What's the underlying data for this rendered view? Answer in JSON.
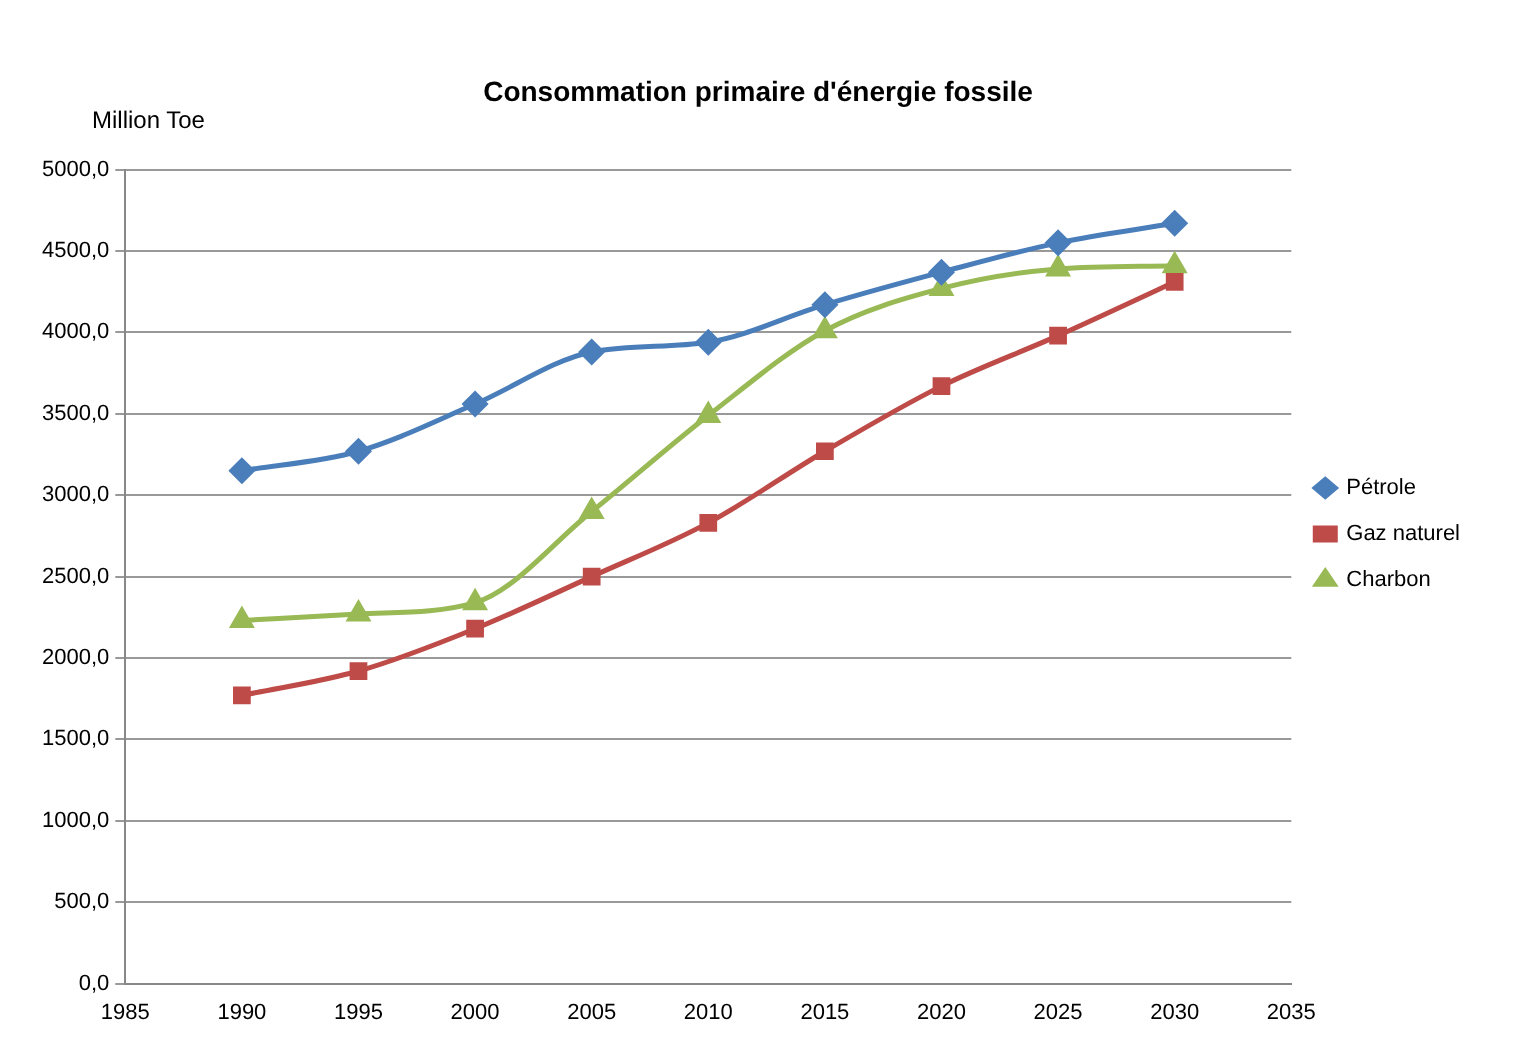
{
  "chart_data": {
    "type": "line",
    "title": "Consommation primaire d'énergie fossile",
    "ylabel": "Million Toe",
    "x": [
      1990,
      1995,
      2000,
      2005,
      2010,
      2015,
      2020,
      2025,
      2030
    ],
    "series": [
      {
        "name": "Pétrole",
        "color": "#4a7ebb",
        "marker": "diamond",
        "values": [
          3150,
          3270,
          3560,
          3880,
          3940,
          4170,
          4370,
          4550,
          4670
        ]
      },
      {
        "name": "Gaz naturel",
        "color": "#be4b48",
        "marker": "square",
        "values": [
          1770,
          1920,
          2180,
          2500,
          2830,
          3270,
          3670,
          3980,
          4310
        ]
      },
      {
        "name": "Charbon",
        "color": "#98b954",
        "marker": "triangle",
        "values": [
          2230,
          2270,
          2340,
          2900,
          3490,
          4010,
          4270,
          4390,
          4410
        ]
      }
    ],
    "xlim": [
      1985,
      2035
    ],
    "xticks": [
      1985,
      1990,
      1995,
      2000,
      2005,
      2010,
      2015,
      2020,
      2025,
      2030,
      2035
    ],
    "ylim": [
      0,
      5000
    ],
    "yticks": [
      {
        "value": 0,
        "label": "0,0"
      },
      {
        "value": 500,
        "label": "500,0"
      },
      {
        "value": 1000,
        "label": "1000,0"
      },
      {
        "value": 1500,
        "label": "1500,0"
      },
      {
        "value": 2000,
        "label": "2000,0"
      },
      {
        "value": 2500,
        "label": "2500,0"
      },
      {
        "value": 3000,
        "label": "3000,0"
      },
      {
        "value": 3500,
        "label": "3500,0"
      },
      {
        "value": 4000,
        "label": "4000,0"
      },
      {
        "value": 4500,
        "label": "4500,0"
      },
      {
        "value": 5000,
        "label": "5000,0"
      }
    ],
    "grid": "y",
    "legend": "right"
  }
}
